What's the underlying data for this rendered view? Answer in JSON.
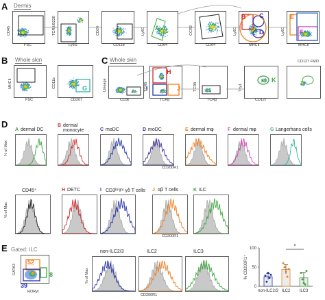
{
  "panels": [
    "A",
    "B",
    "C",
    "D",
    "E"
  ],
  "sections": {
    "dermis": "Dermis",
    "whole_skin_b": "Whole skin",
    "whole_skin_c": "Whole skin",
    "gated_ilc": "Gated: ILC"
  },
  "panel_a": {
    "axes": [
      {
        "x": "FSC",
        "y": "CD45"
      },
      {
        "x": "Ly6G",
        "y": "TCRβ/B220"
      },
      {
        "x": "CD11b",
        "y": "CD24"
      },
      {
        "x": "CD64",
        "y": "Ly6C"
      },
      {
        "x": "CD64",
        "y": "CCR2"
      },
      {
        "x": "MHCII",
        "y": "Ly6C"
      },
      {
        "x": "MHCII",
        "y": "Ly6C"
      }
    ],
    "gate_letters": [
      "A",
      "B",
      "C",
      "D",
      "E",
      "F"
    ]
  },
  "panel_b": {
    "axes": [
      {
        "x": "FSC",
        "y": "MHCII"
      },
      {
        "x": "CD207",
        "y": "CD11b"
      }
    ],
    "gate_letters": [
      "G"
    ]
  },
  "panel_c": {
    "axes": [
      {
        "x": "CD3ε",
        "y": "Lineage"
      },
      {
        "x": "TCRβ",
        "y": "TCRδ"
      },
      {
        "x": "TCRβ",
        "y": "TCRδ"
      },
      {
        "x": "CD127",
        "y": "Thy1"
      },
      {
        "x": "CD127 FMO",
        "y": ""
      }
    ],
    "gate_letters": [
      "H",
      "I",
      "J",
      "K"
    ]
  },
  "panel_d": {
    "y_label": "% of Max",
    "x_label": "CD200R1",
    "row1": [
      {
        "letter": "A",
        "label": "dermal DC",
        "color": "#3aa63a"
      },
      {
        "letter": "B",
        "label": "dermal monocyte",
        "color": "#d62728"
      },
      {
        "letter": "C",
        "label": "moDC",
        "color": "#2233aa"
      },
      {
        "letter": "D",
        "label": "moDC",
        "color": "#3a2f9a"
      },
      {
        "letter": "E",
        "label": "dermal mφ",
        "color": "#f07f1e"
      },
      {
        "letter": "F",
        "label": "dermal mφ",
        "color": "#d43fb5"
      },
      {
        "letter": "G",
        "label": "Langerhans cells",
        "color": "#35b5a0"
      }
    ],
    "row2": [
      {
        "letter": "",
        "label": "CD45⁺",
        "color": "#222222"
      },
      {
        "letter": "H",
        "label": "DETC",
        "color": "#d62728"
      },
      {
        "letter": "I",
        "label": "CD3ᵇʳⁱᵍʰᵗ γδ T cells",
        "color": "#2233aa"
      },
      {
        "letter": "J",
        "label": "αβ T cells",
        "color": "#f07f1e"
      },
      {
        "letter": "K",
        "label": "ILC",
        "color": "#3aa63a"
      }
    ]
  },
  "panel_e": {
    "scatter_axes": {
      "x": "RORγt",
      "y": "GATA3"
    },
    "gate_values": {
      "top": "52",
      "right": "8",
      "bottom": "39"
    },
    "hist_titles": [
      "non-ILC2/3",
      "ILC2",
      "ILC3"
    ],
    "hist_y": "% of Max",
    "hist_x": "CD200R1"
  },
  "chart_data": {
    "type": "bar",
    "ylabel": "% CD200R1⁺",
    "categories": [
      "non-ILC2/3",
      "ILC2",
      "ILC3"
    ],
    "values": [
      25,
      44,
      22
    ],
    "errors": [
      8,
      12,
      14
    ],
    "ylim": [
      0,
      100
    ],
    "yticks": [
      0,
      50,
      100
    ],
    "significance": "*",
    "points": [
      [
        28,
        12,
        35,
        22,
        30
      ],
      [
        60,
        50,
        38,
        25,
        45
      ],
      [
        35,
        18,
        8,
        5,
        40
      ]
    ],
    "colors": [
      "#2233aa",
      "#f07f1e",
      "#3aa63a"
    ]
  }
}
